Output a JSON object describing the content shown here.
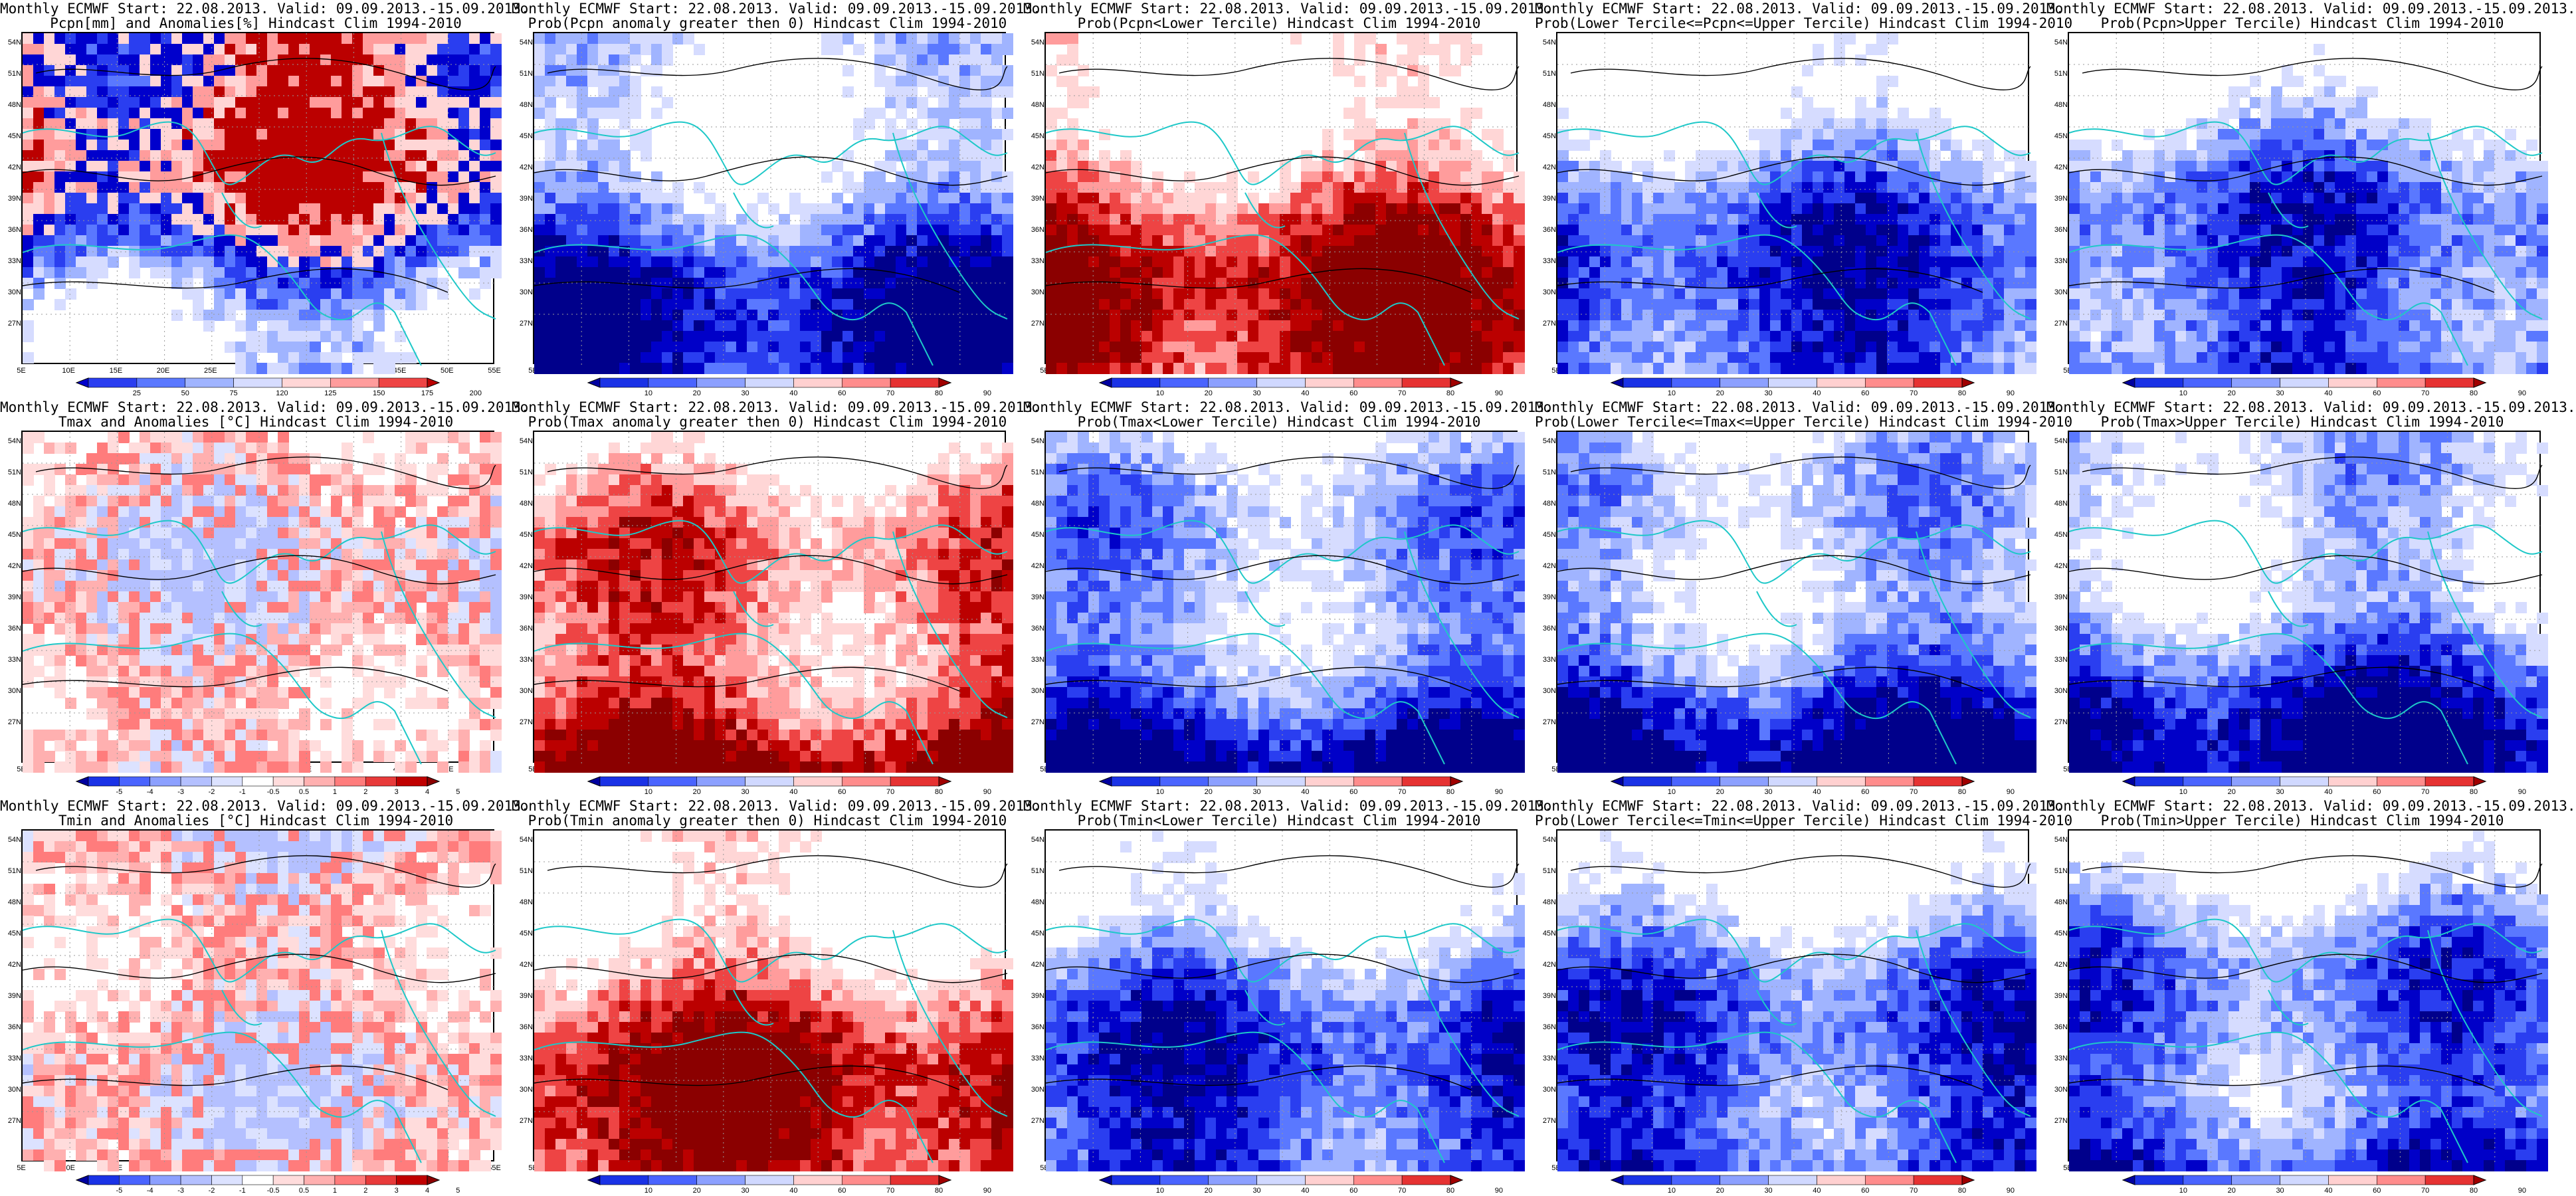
{
  "latitudes": [
    "54N",
    "51N",
    "48N",
    "45N",
    "42N",
    "39N",
    "36N",
    "33N",
    "30N",
    "27N"
  ],
  "longitudes": [
    "5E",
    "10E",
    "15E",
    "20E",
    "25E",
    "30E",
    "35E",
    "40E",
    "45E",
    "50E",
    "55E"
  ],
  "colorbars": {
    "precip": {
      "labels": [
        "25",
        "50",
        "75",
        "120",
        "125",
        "150",
        "175",
        "200"
      ],
      "colors": [
        "#0000cc",
        "#2a3ef0",
        "#5a78ff",
        "#a0b4ff",
        "#d6dcff",
        "#ffd6d6",
        "#ff9c9c",
        "#ee4444",
        "#bb0000"
      ]
    },
    "prob": {
      "labels": [
        "10",
        "20",
        "30",
        "40",
        "60",
        "70",
        "80",
        "90"
      ],
      "colors": [
        "#0000a0",
        "#1a32e6",
        "#4a64ff",
        "#8ca0ff",
        "#d0d8ff",
        "#ffd0d0",
        "#ff8c8c",
        "#e63232",
        "#a00000"
      ]
    },
    "temp": {
      "labels": [
        "-5",
        "-4",
        "-3",
        "-2",
        "-1",
        "-0.5",
        "0.5",
        "1",
        "2",
        "3",
        "4",
        "5"
      ],
      "colors": [
        "#0000a0",
        "#1a32e6",
        "#4a64ff",
        "#8ca0ff",
        "#b4c0ff",
        "#dce2ff",
        "#ffffff",
        "#ffdcdc",
        "#ffb0b0",
        "#ff7c7c",
        "#e83a3a",
        "#c00000",
        "#8c0000"
      ]
    }
  },
  "palettes": {
    "precip": [
      "#ffffff",
      "#d6dcff",
      "#a0b4ff",
      "#5a78ff",
      "#2a3ef0",
      "#0000cc",
      "#ffd6d6",
      "#ff9c9c",
      "#bb0000"
    ],
    "prob_low": [
      "#00008b",
      "#0000c8",
      "#2a3ef0",
      "#5a78ff",
      "#a0b4ff",
      "#d6dcff",
      "#ffffff"
    ],
    "prob_high": [
      "#ffffff",
      "#ffd6d6",
      "#ff9c9c",
      "#ee4444",
      "#bb0000",
      "#8b0000"
    ],
    "temp": [
      "#ffffff",
      "#ffdcdc",
      "#ffb0b0",
      "#ff7c7c",
      "#dce2ff",
      "#b4c0ff"
    ]
  },
  "panels": [
    {
      "title1": "Monthly ECMWF Start: 22.08.2013. Valid: 09.09.2013.-15.09.2013.",
      "title2": "Pcpn[mm] and Anomalies[%] Hindcast Clim 1994-2010",
      "palette": "precip",
      "colorbar": "precip"
    },
    {
      "title1": "Monthly ECMWF Start: 22.08.2013. Valid: 09.09.2013.-15.09.2013.",
      "title2": "Prob(Pcpn anomaly greater then 0) Hindcast Clim 1994-2010",
      "palette": "prob_low",
      "colorbar": "prob"
    },
    {
      "title1": "Monthly ECMWF Start: 22.08.2013. Valid: 09.09.2013.-15.09.2013.",
      "title2": "Prob(Pcpn<Lower Tercile) Hindcast Clim 1994-2010",
      "palette": "prob_high",
      "colorbar": "prob"
    },
    {
      "title1": "Monthly ECMWF Start: 22.08.2013. Valid: 09.09.2013.-15.09.2013.",
      "title2": "Prob(Lower Tercile<=Pcpn<=Upper Tercile) Hindcast Clim 1994-2010",
      "palette": "prob_low",
      "colorbar": "prob"
    },
    {
      "title1": "Monthly ECMWF Start: 22.08.2013. Valid: 09.09.2013.-15.09.2013.",
      "title2": "Prob(Pcpn>Upper Tercile) Hindcast Clim 1994-2010",
      "palette": "prob_low",
      "colorbar": "prob"
    },
    {
      "title1": "Monthly ECMWF Start: 22.08.2013. Valid: 09.09.2013.-15.09.2013.",
      "title2": "Tmax and Anomalies [°C] Hindcast Clim 1994-2010",
      "palette": "temp",
      "colorbar": "temp"
    },
    {
      "title1": "Monthly ECMWF Start: 22.08.2013. Valid: 09.09.2013.-15.09.2013.",
      "title2": "Prob(Tmax anomaly greater then 0) Hindcast Clim 1994-2010",
      "palette": "prob_high",
      "colorbar": "prob"
    },
    {
      "title1": "Monthly ECMWF Start: 22.08.2013. Valid: 09.09.2013.-15.09.2013.",
      "title2": "Prob(Tmax<Lower Tercile) Hindcast Clim 1994-2010",
      "palette": "prob_low",
      "colorbar": "prob"
    },
    {
      "title1": "Monthly ECMWF Start: 22.08.2013. Valid: 09.09.2013.-15.09.2013.",
      "title2": "Prob(Lower Tercile<=Tmax<=Upper Tercile) Hindcast Clim 1994-2010",
      "palette": "prob_low",
      "colorbar": "prob"
    },
    {
      "title1": "Monthly ECMWF Start: 22.08.2013. Valid: 09.09.2013.-15.09.2013.",
      "title2": "Prob(Tmax>Upper Tercile) Hindcast Clim 1994-2010",
      "palette": "prob_low",
      "colorbar": "prob"
    },
    {
      "title1": "Monthly ECMWF Start: 22.08.2013. Valid: 09.09.2013.-15.09.2013.",
      "title2": "Tmin and Anomalies [°C] Hindcast Clim 1994-2010",
      "palette": "temp",
      "colorbar": "temp"
    },
    {
      "title1": "Monthly ECMWF Start: 22.08.2013. Valid: 09.09.2013.-15.09.2013.",
      "title2": "Prob(Tmin anomaly greater then 0) Hindcast Clim 1994-2010",
      "palette": "prob_high",
      "colorbar": "prob"
    },
    {
      "title1": "Monthly ECMWF Start: 22.08.2013. Valid: 09.09.2013.-15.09.2013.",
      "title2": "Prob(Tmin<Lower Tercile) Hindcast Clim 1994-2010",
      "palette": "prob_low",
      "colorbar": "prob"
    },
    {
      "title1": "Monthly ECMWF Start: 22.08.2013. Valid: 09.09.2013.-15.09.2013.",
      "title2": "Prob(Lower Tercile<=Tmin<=Upper Tercile) Hindcast Clim 1994-2010",
      "palette": "prob_low",
      "colorbar": "prob"
    },
    {
      "title1": "Monthly ECMWF Start: 22.08.2013. Valid: 09.09.2013.-15.09.2013.",
      "title2": "Prob(Tmin>Upper Tercile) Hindcast Clim 1994-2010",
      "palette": "prob_low",
      "colorbar": "prob"
    }
  ]
}
